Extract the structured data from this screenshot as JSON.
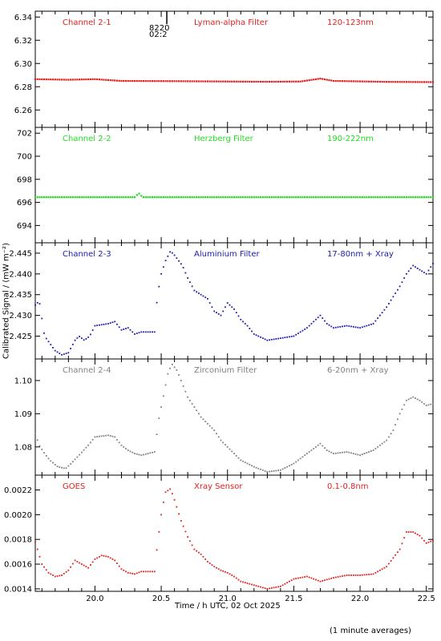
{
  "ylabel": "Calibrated Signal / (mW m⁻²)",
  "xlabel": "Time / h UTC, 02 Oct 2025",
  "footnote": "(1 minute averages)",
  "flare_marker": {
    "text1": "8220",
    "text2": "02:2",
    "x": 20.53
  },
  "chart_data": [
    {
      "type": "scatter",
      "name": "Channel 2-1",
      "filter": "Lyman-alpha Filter",
      "band": "120-123nm",
      "color": "#e02020",
      "xlim": [
        19.55,
        22.55
      ],
      "ylim": [
        6.245,
        6.345
      ],
      "yticks": [
        6.26,
        6.28,
        6.3,
        6.32,
        6.34
      ],
      "ydec": 2,
      "knots": [
        [
          19.55,
          6.2865
        ],
        [
          19.8,
          6.286
        ],
        [
          20.0,
          6.2865
        ],
        [
          20.2,
          6.285
        ],
        [
          20.6,
          6.2848
        ],
        [
          21.0,
          6.2845
        ],
        [
          21.3,
          6.2843
        ],
        [
          21.55,
          6.2845
        ],
        [
          21.7,
          6.287
        ],
        [
          21.8,
          6.285
        ],
        [
          22.2,
          6.2842
        ],
        [
          22.55,
          6.284
        ]
      ]
    },
    {
      "type": "scatter",
      "name": "Channel 2-2",
      "filter": "Herzberg Filter",
      "band": "190-222nm",
      "color": "#22dd22",
      "xlim": [
        19.55,
        22.55
      ],
      "ylim": [
        692.5,
        702.5
      ],
      "yticks": [
        694,
        696,
        698,
        700,
        702
      ],
      "ydec": 0,
      "knots": [
        [
          19.55,
          696.45
        ],
        [
          20.3,
          696.45
        ],
        [
          20.33,
          696.8
        ],
        [
          20.36,
          696.45
        ],
        [
          21.0,
          696.45
        ],
        [
          22.55,
          696.45
        ]
      ]
    },
    {
      "type": "scatter",
      "name": "Channel 2-3",
      "filter": "Aluminium Filter",
      "band": "17-80nm + Xray",
      "color": "#1a1ab0",
      "xlim": [
        19.55,
        22.55
      ],
      "ylim": [
        2.4195,
        2.4475
      ],
      "yticks": [
        2.425,
        2.43,
        2.435,
        2.44,
        2.445
      ],
      "ydec": 3,
      "knots": [
        [
          19.55,
          2.4325
        ],
        [
          19.58,
          2.4335
        ],
        [
          19.62,
          2.425
        ],
        [
          19.7,
          2.4215
        ],
        [
          19.75,
          2.4205
        ],
        [
          19.8,
          2.421
        ],
        [
          19.85,
          2.424
        ],
        [
          19.88,
          2.425
        ],
        [
          19.92,
          2.424
        ],
        [
          19.96,
          2.425
        ],
        [
          20.0,
          2.4275
        ],
        [
          20.1,
          2.428
        ],
        [
          20.15,
          2.4285
        ],
        [
          20.2,
          2.4265
        ],
        [
          20.25,
          2.427
        ],
        [
          20.3,
          2.4255
        ],
        [
          20.35,
          2.426
        ],
        [
          20.45,
          2.426
        ],
        [
          20.47,
          2.4345
        ],
        [
          20.5,
          2.44
        ],
        [
          20.53,
          2.443
        ],
        [
          20.57,
          2.4455
        ],
        [
          20.6,
          2.4445
        ],
        [
          20.66,
          2.442
        ],
        [
          20.7,
          2.439
        ],
        [
          20.75,
          2.436
        ],
        [
          20.8,
          2.435
        ],
        [
          20.85,
          2.434
        ],
        [
          20.9,
          2.431
        ],
        [
          20.95,
          2.43
        ],
        [
          21.0,
          2.433
        ],
        [
          21.05,
          2.4315
        ],
        [
          21.1,
          2.429
        ],
        [
          21.15,
          2.4275
        ],
        [
          21.2,
          2.4255
        ],
        [
          21.3,
          2.424
        ],
        [
          21.4,
          2.4245
        ],
        [
          21.5,
          2.425
        ],
        [
          21.6,
          2.427
        ],
        [
          21.7,
          2.43
        ],
        [
          21.75,
          2.428
        ],
        [
          21.8,
          2.427
        ],
        [
          21.9,
          2.4275
        ],
        [
          22.0,
          2.427
        ],
        [
          22.1,
          2.428
        ],
        [
          22.2,
          2.432
        ],
        [
          22.3,
          2.437
        ],
        [
          22.35,
          2.44
        ],
        [
          22.4,
          2.442
        ],
        [
          22.45,
          2.441
        ],
        [
          22.5,
          2.44
        ],
        [
          22.55,
          2.4425
        ]
      ]
    },
    {
      "type": "scatter",
      "name": "Channel 2-4",
      "filter": "Zirconium Filter",
      "band": "6-20nm + Xray",
      "color": "#808080",
      "xlim": [
        19.55,
        22.55
      ],
      "ylim": [
        1.0715,
        1.1065
      ],
      "yticks": [
        1.08,
        1.09,
        1.1
      ],
      "ydec": 2,
      "knots": [
        [
          19.55,
          1.084
        ],
        [
          19.58,
          1.0805
        ],
        [
          19.62,
          1.078
        ],
        [
          19.66,
          1.076
        ],
        [
          19.72,
          1.074
        ],
        [
          19.78,
          1.0735
        ],
        [
          19.82,
          1.075
        ],
        [
          19.88,
          1.0775
        ],
        [
          19.95,
          1.0805
        ],
        [
          20.0,
          1.083
        ],
        [
          20.1,
          1.0835
        ],
        [
          20.15,
          1.083
        ],
        [
          20.2,
          1.0805
        ],
        [
          20.25,
          1.079
        ],
        [
          20.3,
          1.078
        ],
        [
          20.35,
          1.0775
        ],
        [
          20.45,
          1.0785
        ],
        [
          20.48,
          1.088
        ],
        [
          20.52,
          1.096
        ],
        [
          20.55,
          1.102
        ],
        [
          20.58,
          1.105
        ],
        [
          20.62,
          1.103
        ],
        [
          20.66,
          1.099
        ],
        [
          20.7,
          1.095
        ],
        [
          20.75,
          1.092
        ],
        [
          20.8,
          1.089
        ],
        [
          20.85,
          1.087
        ],
        [
          20.9,
          1.085
        ],
        [
          20.95,
          1.082
        ],
        [
          21.0,
          1.08
        ],
        [
          21.05,
          1.078
        ],
        [
          21.1,
          1.076
        ],
        [
          21.2,
          1.074
        ],
        [
          21.3,
          1.0725
        ],
        [
          21.4,
          1.073
        ],
        [
          21.5,
          1.075
        ],
        [
          21.6,
          1.078
        ],
        [
          21.7,
          1.081
        ],
        [
          21.75,
          1.079
        ],
        [
          21.8,
          1.078
        ],
        [
          21.9,
          1.0785
        ],
        [
          22.0,
          1.0775
        ],
        [
          22.1,
          1.079
        ],
        [
          22.2,
          1.082
        ],
        [
          22.25,
          1.085
        ],
        [
          22.3,
          1.09
        ],
        [
          22.35,
          1.094
        ],
        [
          22.4,
          1.095
        ],
        [
          22.45,
          1.094
        ],
        [
          22.5,
          1.0925
        ],
        [
          22.55,
          1.093
        ]
      ]
    },
    {
      "type": "scatter",
      "name": "GOES",
      "filter": "Xray Sensor",
      "band": "0.1-0.8nm",
      "color": "#e02020",
      "xlim": [
        19.55,
        22.55
      ],
      "ylim": [
        0.00138,
        0.00232
      ],
      "yticks": [
        0.0014,
        0.0016,
        0.0018,
        0.002,
        0.0022
      ],
      "ydec": 4,
      "knots": [
        [
          19.55,
          0.00178
        ],
        [
          19.6,
          0.0016
        ],
        [
          19.65,
          0.00153
        ],
        [
          19.7,
          0.0015
        ],
        [
          19.75,
          0.00151
        ],
        [
          19.8,
          0.00155
        ],
        [
          19.85,
          0.00163
        ],
        [
          19.9,
          0.0016
        ],
        [
          19.95,
          0.00157
        ],
        [
          20.0,
          0.00164
        ],
        [
          20.05,
          0.00167
        ],
        [
          20.1,
          0.00166
        ],
        [
          20.15,
          0.00163
        ],
        [
          20.2,
          0.00156
        ],
        [
          20.25,
          0.00153
        ],
        [
          20.3,
          0.00152
        ],
        [
          20.35,
          0.00154
        ],
        [
          20.45,
          0.00154
        ],
        [
          20.47,
          0.00175
        ],
        [
          20.5,
          0.002
        ],
        [
          20.53,
          0.00218
        ],
        [
          20.57,
          0.00221
        ],
        [
          20.6,
          0.00212
        ],
        [
          20.65,
          0.00195
        ],
        [
          20.7,
          0.00182
        ],
        [
          20.75,
          0.00172
        ],
        [
          20.8,
          0.00168
        ],
        [
          20.85,
          0.00162
        ],
        [
          20.9,
          0.00158
        ],
        [
          20.95,
          0.00155
        ],
        [
          21.0,
          0.00153
        ],
        [
          21.05,
          0.0015
        ],
        [
          21.1,
          0.00146
        ],
        [
          21.2,
          0.00143
        ],
        [
          21.3,
          0.0014
        ],
        [
          21.4,
          0.00142
        ],
        [
          21.5,
          0.00148
        ],
        [
          21.6,
          0.0015
        ],
        [
          21.7,
          0.00146
        ],
        [
          21.8,
          0.00149
        ],
        [
          21.9,
          0.00151
        ],
        [
          22.0,
          0.00151
        ],
        [
          22.1,
          0.00152
        ],
        [
          22.2,
          0.00158
        ],
        [
          22.3,
          0.00172
        ],
        [
          22.35,
          0.00186
        ],
        [
          22.4,
          0.00186
        ],
        [
          22.45,
          0.00183
        ],
        [
          22.5,
          0.00177
        ],
        [
          22.55,
          0.00179
        ]
      ]
    }
  ],
  "xaxis": {
    "xlim": [
      19.55,
      22.55
    ],
    "ticks": [
      20.0,
      20.5,
      21.0,
      21.5,
      22.0,
      22.5
    ],
    "tick_labels": [
      "20.0",
      "20.5",
      "21.0",
      "21.5",
      "22.0",
      "22.5"
    ]
  }
}
